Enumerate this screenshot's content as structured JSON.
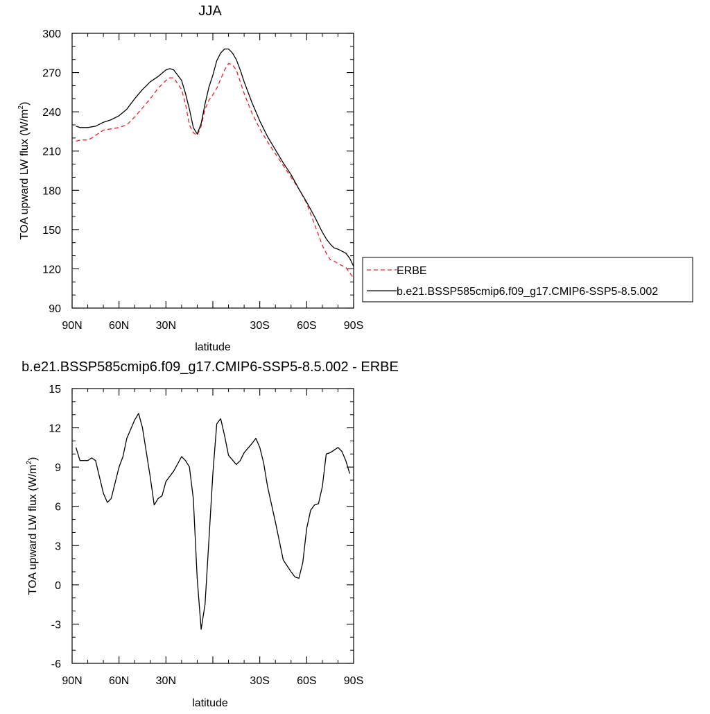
{
  "chart_data": [
    {
      "type": "line",
      "title": "JJA",
      "xlabel": "latitude",
      "ylabel": "TOA upward LW flux (W/m",
      "ylabel_sup": "2",
      "ylabel_close": ")",
      "xlim": [
        90,
        -90
      ],
      "ylim": [
        90,
        300
      ],
      "xticks": [
        90,
        60,
        30,
        0,
        -30,
        -60,
        -90
      ],
      "xtick_labels": [
        "90N",
        "60N",
        "30N",
        "",
        "30S",
        "60S",
        "90S"
      ],
      "yticks": [
        90,
        120,
        150,
        180,
        210,
        240,
        270,
        300
      ],
      "ytick_labels": [
        "90",
        "120",
        "150",
        "180",
        "210",
        "240",
        "270",
        "300"
      ],
      "legend": {
        "placement": "right",
        "entries": [
          {
            "label": "ERBE",
            "color": "#e8242a",
            "dash": true
          },
          {
            "label": "b.e21.BSSP585cmip6.f09_g17.CMIP6-SSP5-8.5.002",
            "color": "#000000",
            "dash": false
          }
        ]
      },
      "series": [
        {
          "name": "ERBE",
          "color": "#e8242a",
          "dash": true,
          "x": [
            87.5,
            85,
            80,
            77.5,
            75,
            70,
            65,
            60,
            55,
            50,
            45,
            40,
            35,
            30,
            27.5,
            25,
            20,
            17.5,
            15,
            12.5,
            10,
            7.5,
            5,
            2.5,
            0,
            -2.5,
            -5,
            -7.5,
            -10,
            -12.5,
            -15,
            -17.5,
            -20,
            -25,
            -30,
            -35,
            -40,
            -45,
            -50,
            -55,
            -60,
            -65,
            -70,
            -72.5,
            -75,
            -77.5,
            -80,
            -85,
            -87.5,
            -90
          ],
          "y": [
            217.5,
            218.5,
            218.5,
            220,
            222,
            226,
            227,
            228,
            230,
            236,
            243,
            250,
            258,
            264,
            266,
            266,
            257,
            246,
            230,
            224,
            222,
            229,
            242,
            249,
            253,
            258,
            265,
            272,
            277,
            276,
            272,
            263,
            254,
            239,
            227,
            217,
            208,
            199,
            190,
            181,
            170,
            154,
            138,
            132,
            127,
            126,
            124,
            121,
            117,
            113
          ]
        },
        {
          "name": "b.e21.BSSP585cmip6.f09_g17.CMIP6-SSP5-8.5.002",
          "color": "#000000",
          "dash": false,
          "x": [
            87.5,
            85,
            80,
            77.5,
            75,
            70,
            65,
            60,
            55,
            50,
            45,
            40,
            35,
            30,
            27.5,
            25,
            20,
            17.5,
            15,
            12.5,
            10,
            7.5,
            5,
            2.5,
            0,
            -2.5,
            -5,
            -7.5,
            -10,
            -12.5,
            -15,
            -17.5,
            -20,
            -25,
            -30,
            -35,
            -40,
            -45,
            -50,
            -55,
            -60,
            -65,
            -70,
            -72.5,
            -75,
            -77.5,
            -80,
            -85,
            -87.5,
            -90
          ],
          "y": [
            229,
            228,
            228,
            228.5,
            229,
            232,
            234,
            237,
            242,
            250,
            257,
            263,
            267,
            272,
            273,
            272,
            264,
            254,
            242,
            228,
            223,
            231,
            246,
            259,
            268,
            279,
            285,
            288,
            288,
            285,
            280,
            272,
            263,
            247,
            233,
            221,
            211,
            201,
            192,
            181,
            171,
            160,
            148,
            143,
            139,
            136,
            135,
            132,
            128,
            122
          ]
        }
      ]
    },
    {
      "type": "line",
      "title": "b.e21.BSSP585cmip6.f09_g17.CMIP6-SSP5-8.5.002 - ERBE",
      "xlabel": "latitude",
      "ylabel": "TOA upward LW flux (W/m",
      "ylabel_sup": "2",
      "ylabel_close": ")",
      "xlim": [
        90,
        -90
      ],
      "ylim": [
        -6,
        15
      ],
      "xticks": [
        90,
        60,
        30,
        0,
        -30,
        -60,
        -90
      ],
      "xtick_labels": [
        "90N",
        "60N",
        "30N",
        "",
        "30S",
        "60S",
        "90S"
      ],
      "yticks": [
        -6,
        -3,
        0,
        3,
        6,
        9,
        12,
        15
      ],
      "ytick_labels": [
        "-6",
        "-3",
        "0",
        "3",
        "6",
        "9",
        "12",
        "15"
      ],
      "series": [
        {
          "color": "#000000",
          "dash": false,
          "x": [
            87.5,
            85,
            80,
            77.5,
            75,
            70,
            67.5,
            65,
            60,
            57.5,
            55,
            50,
            47.5,
            45,
            40,
            37.5,
            35,
            32.5,
            30,
            27.5,
            25,
            20,
            17.5,
            15,
            12.5,
            10,
            7.5,
            5,
            2.5,
            0,
            -2.5,
            -5,
            -7.5,
            -10,
            -15,
            -17.5,
            -20,
            -25,
            -27.5,
            -30,
            -32.5,
            -35,
            -40,
            -45,
            -50,
            -52.5,
            -55,
            -57.5,
            -60,
            -62.5,
            -65,
            -67.5,
            -70,
            -72.5,
            -75,
            -80,
            -82.5,
            -85,
            -87.5
          ],
          "y": [
            10.5,
            9.5,
            9.5,
            9.7,
            9.5,
            7.0,
            6.3,
            6.6,
            9.0,
            9.8,
            11.2,
            12.6,
            13.1,
            12.0,
            8.2,
            6.1,
            6.6,
            6.8,
            7.9,
            8.3,
            8.7,
            9.8,
            9.5,
            9.0,
            6.6,
            0.5,
            -3.4,
            -1.5,
            3.5,
            8.5,
            12.3,
            12.7,
            11.4,
            9.9,
            9.2,
            9.5,
            10.1,
            10.8,
            11.2,
            10.5,
            9.3,
            7.5,
            4.8,
            1.9,
            1.0,
            0.6,
            0.5,
            1.7,
            4.3,
            5.7,
            6.1,
            6.2,
            7.5,
            10.0,
            10.1,
            10.5,
            10.2,
            9.5,
            8.5
          ]
        }
      ]
    }
  ]
}
